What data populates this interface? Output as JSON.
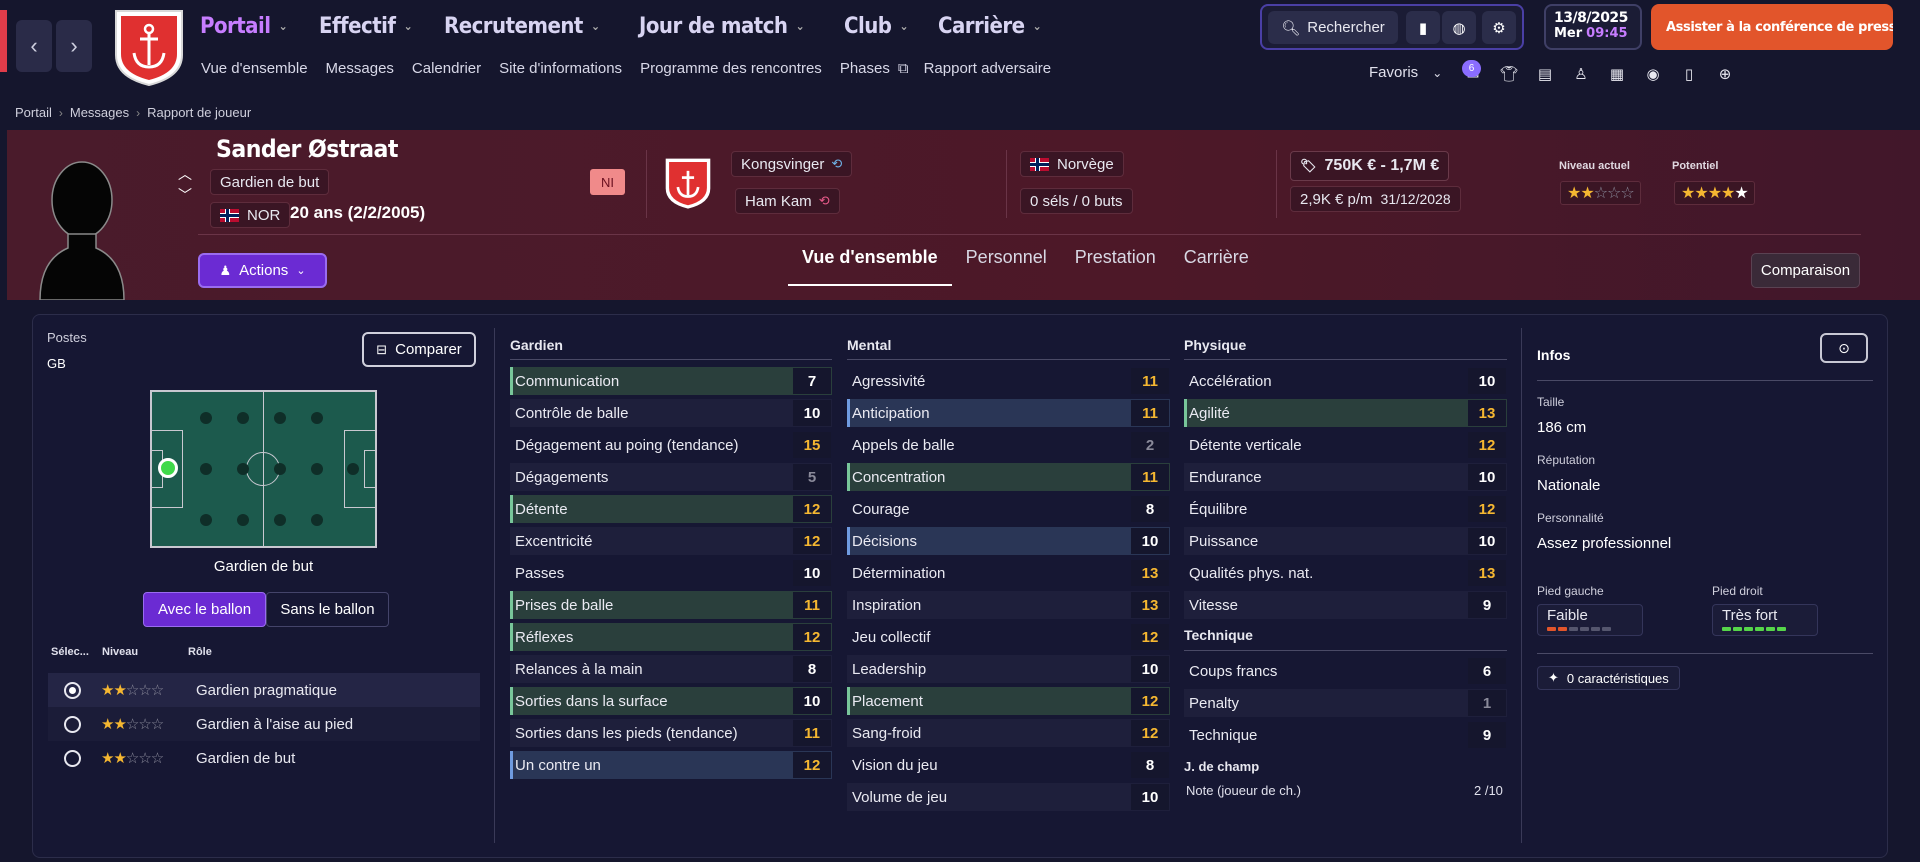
{
  "nav": {
    "items": [
      "Portail",
      "Effectif",
      "Recrutement",
      "Jour de match",
      "Club",
      "Carrière"
    ],
    "sub": [
      "Vue d'ensemble",
      "Messages",
      "Calendrier",
      "Site d'informations",
      "Programme des rencontres",
      "Phases",
      "Rapport adversaire"
    ],
    "search": "Rechercher",
    "date": "13/8/2025",
    "day": "Mer",
    "time": "09:45",
    "press": "Assister à la conférence de presse",
    "favorites": "Favoris",
    "badge_count": "6"
  },
  "breadcrumb": [
    "Portail",
    "Messages",
    "Rapport de joueur"
  ],
  "player": {
    "name": "Sander Østraat",
    "position": "Gardien de but",
    "nation_code": "NOR",
    "age": "20 ans (2/2/2005)",
    "ni_tag": "NI",
    "club": "Kongsvinger",
    "loan_club": "Ham Kam",
    "nation": "Norvège",
    "caps": "0 séls / 0 buts",
    "value": "750K € - 1,7M €",
    "wage": "2,9K € p/m",
    "contract": "31/12/2028",
    "current_label": "Niveau actuel",
    "potential_label": "Potentiel",
    "current_stars": 2,
    "potential_stars": 4.5,
    "actions": "Actions",
    "compare": "Comparaison",
    "tabs": [
      "Vue d'ensemble",
      "Personnel",
      "Prestation",
      "Carrière"
    ]
  },
  "positions": {
    "title": "Postes",
    "value": "GB",
    "compare_btn": "Comparer",
    "role_name": "Gardien de but",
    "with_ball": "Avec le ballon",
    "without_ball": "Sans le ballon",
    "headers": [
      "Sélec...",
      "Niveau",
      "Rôle"
    ],
    "roles": [
      {
        "name": "Gardien pragmatique",
        "stars": 2,
        "selected": true
      },
      {
        "name": "Gardien à l'aise au pied",
        "stars": 2,
        "selected": false
      },
      {
        "name": "Gardien de but",
        "stars": 2,
        "selected": false
      }
    ]
  },
  "attributes": {
    "goalkeeping": {
      "title": "Gardien",
      "rows": [
        [
          "Communication",
          "7",
          "w",
          "g"
        ],
        [
          "Contrôle de balle",
          "10",
          "w",
          ""
        ],
        [
          "Dégagement au poing (tendance)",
          "15",
          "o",
          ""
        ],
        [
          "Dégagements",
          "5",
          "g",
          ""
        ],
        [
          "Détente",
          "12",
          "o",
          "g"
        ],
        [
          "Excentricité",
          "12",
          "o",
          ""
        ],
        [
          "Passes",
          "10",
          "w",
          ""
        ],
        [
          "Prises de balle",
          "11",
          "o",
          "g"
        ],
        [
          "Réflexes",
          "12",
          "o",
          "g"
        ],
        [
          "Relances à la main",
          "8",
          "w",
          ""
        ],
        [
          "Sorties dans la surface",
          "10",
          "w",
          "g"
        ],
        [
          "Sorties dans les pieds (tendance)",
          "11",
          "o",
          ""
        ],
        [
          "Un contre un",
          "12",
          "o",
          "b"
        ]
      ]
    },
    "mental": {
      "title": "Mental",
      "rows": [
        [
          "Agressivité",
          "11",
          "o",
          ""
        ],
        [
          "Anticipation",
          "11",
          "o",
          "b"
        ],
        [
          "Appels de balle",
          "2",
          "g",
          ""
        ],
        [
          "Concentration",
          "11",
          "o",
          "g"
        ],
        [
          "Courage",
          "8",
          "w",
          ""
        ],
        [
          "Décisions",
          "10",
          "w",
          "b"
        ],
        [
          "Détermination",
          "13",
          "o",
          ""
        ],
        [
          "Inspiration",
          "13",
          "o",
          ""
        ],
        [
          "Jeu collectif",
          "12",
          "o",
          ""
        ],
        [
          "Leadership",
          "10",
          "w",
          ""
        ],
        [
          "Placement",
          "12",
          "o",
          "g"
        ],
        [
          "Sang-froid",
          "12",
          "o",
          ""
        ],
        [
          "Vision du jeu",
          "8",
          "w",
          ""
        ],
        [
          "Volume de jeu",
          "10",
          "w",
          ""
        ]
      ]
    },
    "physical": {
      "title": "Physique",
      "rows": [
        [
          "Accélération",
          "10",
          "w",
          ""
        ],
        [
          "Agilité",
          "13",
          "o",
          "g"
        ],
        [
          "Détente verticale",
          "12",
          "o",
          ""
        ],
        [
          "Endurance",
          "10",
          "w",
          ""
        ],
        [
          "Équilibre",
          "12",
          "o",
          ""
        ],
        [
          "Puissance",
          "10",
          "w",
          ""
        ],
        [
          "Qualités phys. nat.",
          "13",
          "o",
          ""
        ],
        [
          "Vitesse",
          "9",
          "w",
          ""
        ]
      ]
    },
    "technical": {
      "title": "Technique",
      "rows": [
        [
          "Coups francs",
          "6",
          "w",
          ""
        ],
        [
          "Penalty",
          "1",
          "g",
          ""
        ],
        [
          "Technique",
          "9",
          "w",
          ""
        ]
      ]
    },
    "outfield": {
      "title": "J. de champ",
      "label": "Note (joueur de ch.)",
      "value": "2 /10"
    }
  },
  "info": {
    "title": "Infos",
    "height_label": "Taille",
    "height": "186 cm",
    "rep_label": "Réputation",
    "rep": "Nationale",
    "pers_label": "Personnalité",
    "pers": "Assez professionnel",
    "left_label": "Pied gauche",
    "left": "Faible",
    "right_label": "Pied droit",
    "right": "Très fort",
    "traits": "0 caractéristiques"
  },
  "colors": {
    "accent": "#c77dff",
    "orange": "#f5b731",
    "press": "#e2552b",
    "pitch": "#1c5a4d"
  }
}
